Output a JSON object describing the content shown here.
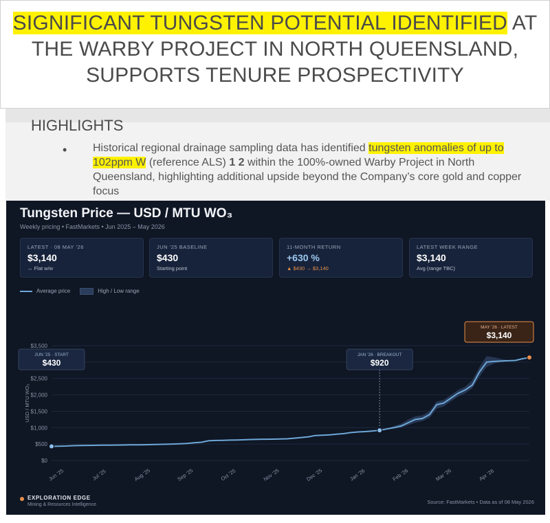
{
  "document": {
    "headline": {
      "hl1": "SIGNIFICANT TUNGSTEN POTENTIAL IDENTIFIED",
      "rest1": " AT",
      "line2": "THE WARBY PROJECT IN NORTH QUEENSLAND,",
      "line3": "SUPPORTS TENURE PROSPECTIVITY"
    },
    "highlights_title": "HIGHLIGHTS",
    "bullet": {
      "part1": "Historical regional drainage sampling data has identified ",
      "hl": "tungsten anomalies of up to 102ppm W",
      "part2": " (reference ALS) ",
      "sup": "1 2",
      "part3": " within the 100%-owned Warby Project in North Queensland, highlighting additional upside beyond the Company’s core gold and copper focus"
    },
    "highlight_color": "#fff200"
  },
  "chart_panel": {
    "title": "Tungsten Price — USD / MTU WO₃",
    "subtitle": "Weekly pricing • FastMarkets • Jun 2025 – May 2026",
    "cards": [
      {
        "label": "LATEST · 08 MAY ’26",
        "value": "$3,140",
        "sub": "↔ Flat w/w"
      },
      {
        "label": "JUN ’25 BASELINE",
        "value": "$430",
        "sub": "Starting point"
      },
      {
        "label": "11-MONTH RETURN",
        "value": "+630 %",
        "sub": "▲ $430 → $3,140"
      },
      {
        "label": "LATEST WEEK RANGE",
        "value": "$3,140",
        "sub": "Avg (range TBC)"
      }
    ],
    "legend": {
      "line": "Average price",
      "band": "High / Low range"
    },
    "brand": "EXPLORATION EDGE",
    "brand_sub": "Mining & Resources Intelligence",
    "source": "Source: FastMarkets • Data as of 08 May 2026",
    "colors": {
      "background": "#0f1624",
      "line": "#6ea8d8",
      "band": "#2a3d5c",
      "accent": "#e8904a"
    }
  },
  "chart_data": {
    "type": "line",
    "title": "Tungsten Price — USD / MTU WO₃",
    "ylabel": "USD / MTU WO₃",
    "xlabel": "",
    "ylim": [
      0,
      3500
    ],
    "yticks": [
      0,
      500,
      1000,
      1500,
      2000,
      2500,
      3000,
      3500
    ],
    "ytick_labels": [
      "$0",
      "$500",
      "$1,000",
      "$1,500",
      "$2,000",
      "$2,500",
      "$3,000",
      "$3,500"
    ],
    "xtick_labels": [
      "Jun ’25",
      "Jul ’25",
      "Aug ’25",
      "Sep ’25",
      "Oct ’25",
      "Nov ’25",
      "Dec ’25",
      "Jan ’26",
      "Feb ’26",
      "Mar ’26",
      "Apr ’26"
    ],
    "grid": true,
    "legend": "top-left",
    "series": [
      {
        "name": "Average price",
        "values": [
          430,
          435,
          440,
          450,
          455,
          460,
          462,
          465,
          468,
          470,
          472,
          475,
          478,
          480,
          485,
          490,
          495,
          500,
          510,
          520,
          540,
          555,
          600,
          610,
          615,
          620,
          625,
          630,
          640,
          645,
          648,
          650,
          655,
          660,
          680,
          700,
          720,
          760,
          770,
          780,
          800,
          820,
          850,
          870,
          880,
          900,
          920,
          960,
          1000,
          1050,
          1150,
          1250,
          1280,
          1400,
          1700,
          1750,
          1900,
          2050,
          2150,
          2300,
          2700,
          3000,
          3020,
          3030,
          3040,
          3050,
          3100,
          3140
        ],
        "low": [
          430,
          435,
          440,
          450,
          455,
          460,
          462,
          465,
          468,
          470,
          472,
          475,
          478,
          480,
          485,
          490,
          495,
          500,
          510,
          520,
          540,
          555,
          600,
          610,
          615,
          620,
          625,
          630,
          640,
          645,
          648,
          650,
          655,
          660,
          680,
          700,
          720,
          760,
          770,
          780,
          800,
          820,
          850,
          870,
          880,
          900,
          920,
          950,
          970,
          1000,
          1080,
          1150,
          1200,
          1300,
          1580,
          1650,
          1800,
          1950,
          2050,
          2200,
          2550,
          2850,
          2950,
          3000,
          3030,
          3050,
          3100,
          3140
        ],
        "high": [
          430,
          435,
          440,
          450,
          455,
          460,
          462,
          465,
          468,
          470,
          472,
          475,
          478,
          480,
          485,
          490,
          495,
          500,
          510,
          520,
          540,
          555,
          600,
          610,
          615,
          620,
          625,
          630,
          640,
          645,
          648,
          650,
          655,
          660,
          680,
          700,
          720,
          760,
          770,
          780,
          800,
          820,
          850,
          870,
          880,
          900,
          920,
          980,
          1050,
          1120,
          1250,
          1350,
          1380,
          1500,
          1800,
          1850,
          2000,
          2150,
          2250,
          2450,
          2850,
          3180,
          3150,
          3100,
          3060,
          3060,
          3110,
          3150
        ]
      }
    ],
    "annotations": [
      {
        "label": "JUN ’25 · START",
        "value": "$430",
        "index": 0
      },
      {
        "label": "JAN ’26 · BREAKOUT",
        "value": "$920",
        "index": 46
      },
      {
        "label": "MAY ’26 · LATEST",
        "value": "$3,140",
        "index": 67
      }
    ]
  }
}
